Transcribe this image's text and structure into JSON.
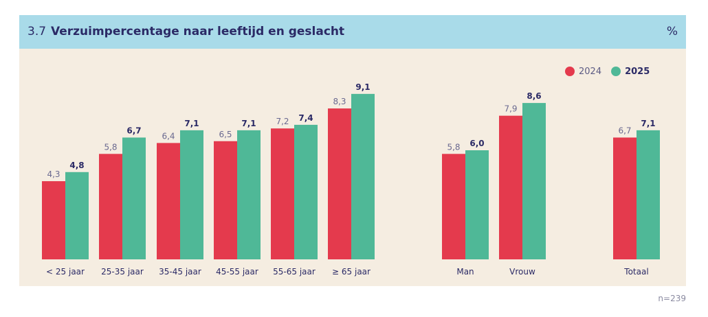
{
  "header": {
    "number": "3.7",
    "title": "Verzuimpercentage naar leeftijd en geslacht",
    "unit": "%"
  },
  "note": "n=239",
  "colors": {
    "s2024": "#e43a4d",
    "s2025": "#4fb897",
    "header_bg": "#a9dbe9",
    "panel_bg": "#f5ede1",
    "text": "#2b2a66"
  },
  "legend": [
    {
      "label": "2024"
    },
    {
      "label": "2025"
    }
  ],
  "chart_data": {
    "type": "bar",
    "categories": [
      "< 25 jaar",
      "25-35 jaar",
      "35-45 jaar",
      "45-55 jaar",
      "55-65 jaar",
      "≥ 65 jaar",
      "Man",
      "Vrouw",
      "Totaal"
    ],
    "series": [
      {
        "name": "2024",
        "values": [
          4.3,
          5.8,
          6.4,
          6.5,
          7.2,
          8.3,
          5.8,
          7.9,
          6.7
        ],
        "labels": [
          "4,3",
          "5,8",
          "6,4",
          "6,5",
          "7,2",
          "8,3",
          "5,8",
          "7,9",
          "6,7"
        ]
      },
      {
        "name": "2025",
        "values": [
          4.8,
          6.7,
          7.1,
          7.1,
          7.4,
          9.1,
          6.0,
          8.6,
          7.1
        ],
        "labels": [
          "4,8",
          "6,7",
          "7,1",
          "7,1",
          "7,4",
          "9,1",
          "6,0",
          "8,6",
          "7,1"
        ]
      }
    ],
    "ylim": [
      0,
      10
    ],
    "legend_position": "top-right"
  }
}
